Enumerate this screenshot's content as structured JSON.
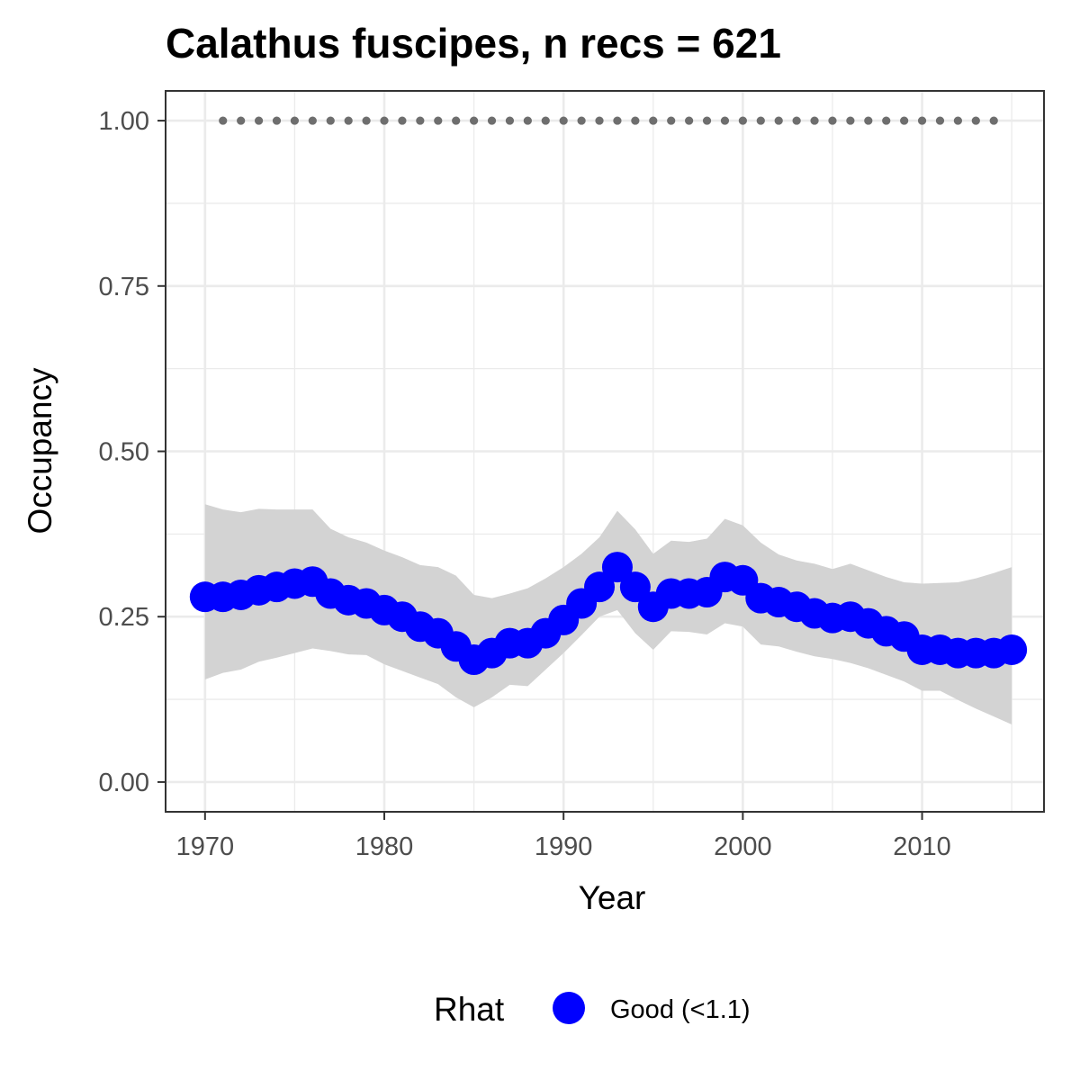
{
  "chart_data": {
    "type": "line",
    "title": "Calathus fuscipes, n recs = 621",
    "xlabel": "Year",
    "ylabel": "Occupancy",
    "xlim": [
      1967.8,
      2016.8
    ],
    "ylim": [
      -0.045,
      1.045
    ],
    "x_ticks": [
      1970,
      1980,
      1990,
      2000,
      2010
    ],
    "x_tick_labels": [
      "1970",
      "1980",
      "1990",
      "2000",
      "2010"
    ],
    "y_ticks": [
      0.0,
      0.25,
      0.5,
      0.75,
      1.0
    ],
    "y_tick_labels": [
      "0.00",
      "0.25",
      "0.50",
      "0.75",
      "1.00"
    ],
    "grid": true,
    "legend_position": "bottom",
    "legend": {
      "title": "Rhat",
      "label": "Good (<1.1)"
    },
    "colors": {
      "points": "#0000ff",
      "ribbon": "#d3d3d3",
      "dotted": "#6e6e6e",
      "grid": "#ebebeb",
      "panel_border": "#333333"
    },
    "series": [
      {
        "name": "Good (<1.1)",
        "x": [
          1970,
          1971,
          1972,
          1973,
          1974,
          1975,
          1976,
          1977,
          1978,
          1979,
          1980,
          1981,
          1982,
          1983,
          1984,
          1985,
          1986,
          1987,
          1988,
          1989,
          1990,
          1991,
          1992,
          1993,
          1994,
          1995,
          1996,
          1997,
          1998,
          1999,
          2000,
          2001,
          2002,
          2003,
          2004,
          2005,
          2006,
          2007,
          2008,
          2009,
          2010,
          2011,
          2012,
          2013,
          2014,
          2015
        ],
        "values": [
          0.28,
          0.28,
          0.283,
          0.29,
          0.295,
          0.3,
          0.303,
          0.285,
          0.275,
          0.27,
          0.26,
          0.25,
          0.235,
          0.225,
          0.205,
          0.185,
          0.195,
          0.21,
          0.21,
          0.225,
          0.245,
          0.27,
          0.295,
          0.325,
          0.295,
          0.265,
          0.285,
          0.285,
          0.287,
          0.31,
          0.305,
          0.278,
          0.272,
          0.265,
          0.255,
          0.248,
          0.25,
          0.24,
          0.228,
          0.22,
          0.2,
          0.2,
          0.195,
          0.195,
          0.195,
          0.2
        ],
        "lower": [
          0.155,
          0.165,
          0.17,
          0.182,
          0.188,
          0.195,
          0.202,
          0.198,
          0.193,
          0.192,
          0.178,
          0.168,
          0.158,
          0.148,
          0.128,
          0.113,
          0.128,
          0.147,
          0.145,
          0.17,
          0.195,
          0.222,
          0.25,
          0.26,
          0.225,
          0.2,
          0.228,
          0.227,
          0.223,
          0.24,
          0.235,
          0.208,
          0.205,
          0.197,
          0.19,
          0.186,
          0.18,
          0.172,
          0.162,
          0.152,
          0.138,
          0.138,
          0.124,
          0.111,
          0.099,
          0.087
        ],
        "upper": [
          0.42,
          0.412,
          0.408,
          0.413,
          0.412,
          0.412,
          0.412,
          0.383,
          0.37,
          0.362,
          0.35,
          0.34,
          0.328,
          0.325,
          0.312,
          0.283,
          0.278,
          0.285,
          0.293,
          0.308,
          0.325,
          0.345,
          0.37,
          0.41,
          0.382,
          0.345,
          0.365,
          0.363,
          0.368,
          0.398,
          0.388,
          0.362,
          0.344,
          0.335,
          0.33,
          0.322,
          0.33,
          0.32,
          0.31,
          0.302,
          0.3,
          0.301,
          0.302,
          0.308,
          0.316,
          0.325
        ]
      }
    ],
    "reference_points": {
      "x": [
        1971,
        1972,
        1973,
        1974,
        1975,
        1976,
        1977,
        1978,
        1979,
        1980,
        1981,
        1982,
        1983,
        1984,
        1985,
        1986,
        1987,
        1988,
        1989,
        1990,
        1991,
        1992,
        1993,
        1994,
        1995,
        1996,
        1997,
        1998,
        1999,
        2000,
        2001,
        2002,
        2003,
        2004,
        2005,
        2006,
        2007,
        2008,
        2009,
        2010,
        2011,
        2012,
        2013,
        2014
      ],
      "value": 1.0
    }
  }
}
